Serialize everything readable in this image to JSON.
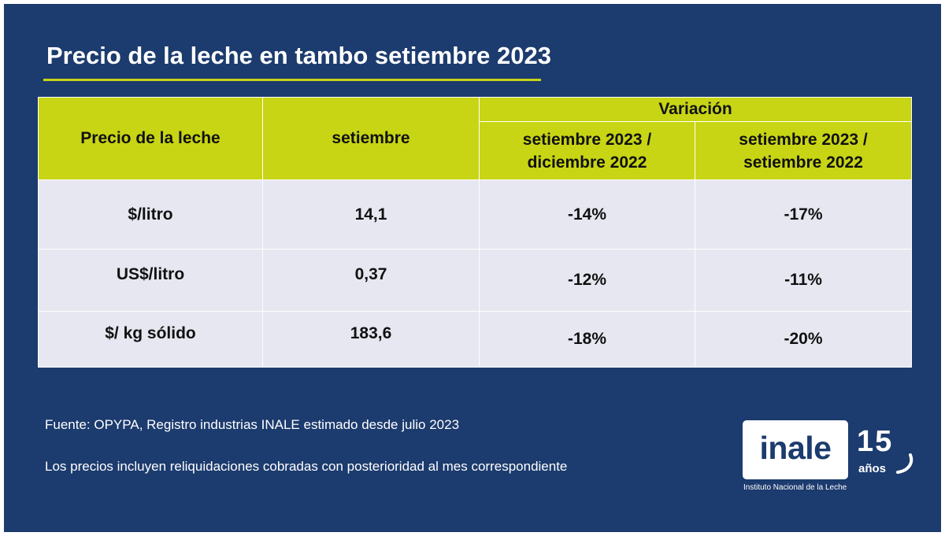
{
  "title": "Precio de la leche en tambo setiembre 2023",
  "colors": {
    "background": "#1c3b6e",
    "accent": "#c8d514",
    "row_fill": "#e6e7f1"
  },
  "table": {
    "header": {
      "col1": "Precio de la leche",
      "col2": "setiembre",
      "group": "Variación",
      "sub1": "setiembre 2023 / diciembre 2022",
      "sub2": "setiembre 2023 / setiembre 2022"
    },
    "rows": [
      {
        "label": "$/litro",
        "value": "14,1",
        "var_dic": "-14%",
        "var_set": "-17%"
      },
      {
        "label": "US$/litro",
        "value": "0,37",
        "var_dic": "-12%",
        "var_set": "-11%"
      },
      {
        "label": "$/ kg sólido",
        "value": "183,6",
        "var_dic": "-18%",
        "var_set": "-20%"
      }
    ]
  },
  "footnotes": {
    "source": "Fuente: OPYPA, Registro industrias INALE estimado desde julio 2023",
    "note": "Los precios incluyen reliquidaciones cobradas con posterioridad al mes correspondiente"
  },
  "logo": {
    "word": "inale",
    "anniversary_number": "15",
    "anniversary_word": "años",
    "caption": "Instituto Nacional de la Leche"
  }
}
